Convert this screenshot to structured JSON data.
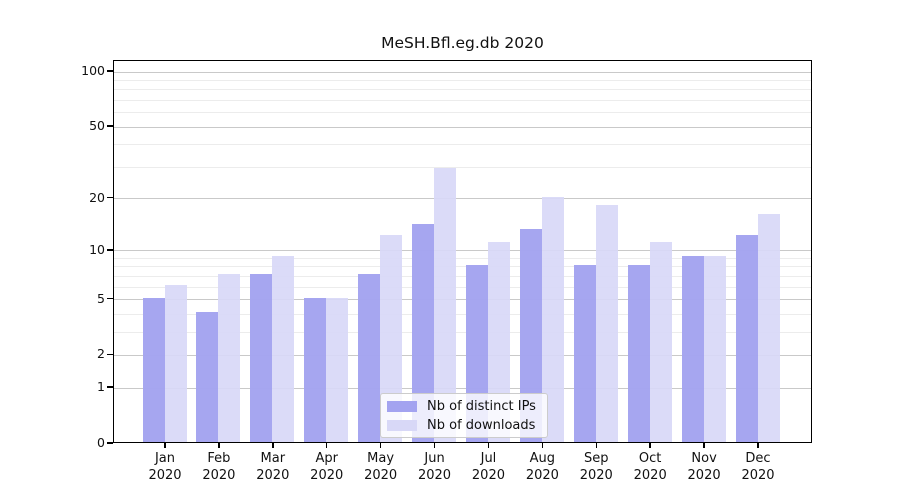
{
  "title": "MeSH.Bfl.eg.db 2020",
  "legend": {
    "items": [
      {
        "label": "Nb of distinct IPs",
        "color": "#a3a3f0"
      },
      {
        "label": "Nb of downloads",
        "color": "#d8d8f7"
      }
    ]
  },
  "x_axis": {
    "months": [
      "Jan",
      "Feb",
      "Mar",
      "Apr",
      "May",
      "Jun",
      "Jul",
      "Aug",
      "Sep",
      "Oct",
      "Nov",
      "Dec"
    ],
    "year": "2020"
  },
  "y_axis": {
    "tick_labels": [
      "0",
      "1",
      "2",
      "5",
      "10",
      "20",
      "50",
      "100"
    ]
  },
  "chart_data": {
    "type": "bar",
    "title": "MeSH.Bfl.eg.db 2020",
    "categories": [
      "Jan 2020",
      "Feb 2020",
      "Mar 2020",
      "Apr 2020",
      "May 2020",
      "Jun 2020",
      "Jul 2020",
      "Aug 2020",
      "Sep 2020",
      "Oct 2020",
      "Nov 2020",
      "Dec 2020"
    ],
    "series": [
      {
        "name": "Nb of distinct IPs",
        "color": "#a3a3f0",
        "values": [
          5,
          4,
          7,
          5,
          7,
          14,
          8,
          13,
          8,
          8,
          9,
          12
        ]
      },
      {
        "name": "Nb of downloads",
        "color": "#d8d8f7",
        "values": [
          6,
          7,
          9,
          5,
          12,
          29,
          11,
          20,
          18,
          11,
          9,
          16
        ]
      }
    ],
    "xlabel": "",
    "ylabel": "",
    "y_scale": "log1p",
    "ylim": [
      0,
      115
    ],
    "major_ticks": [
      0,
      1,
      2,
      5,
      10,
      20,
      50,
      100
    ],
    "minor_gridlines": [
      3,
      4,
      6,
      7,
      8,
      9,
      30,
      40,
      60,
      70,
      80,
      90
    ],
    "grid": "horizontal",
    "legend_position": "lower center"
  },
  "colors": {
    "major_grid": "#c9c9c9",
    "minor_grid": "#ececec",
    "axis": "#000000",
    "text": "#111111",
    "background": "#ffffff",
    "legend_border": "#cccccc"
  }
}
